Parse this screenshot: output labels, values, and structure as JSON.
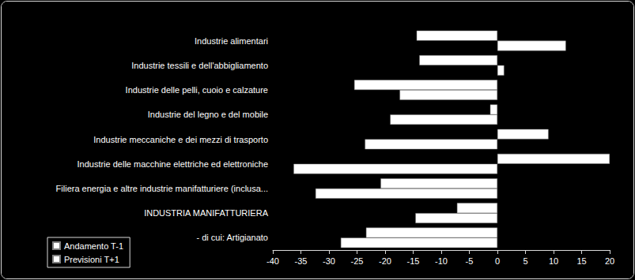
{
  "chart_data": {
    "type": "bar",
    "orientation": "horizontal",
    "categories": [
      "Industrie alimentari",
      "Industrie tessili e dell'abbigliamento",
      "Industrie delle pelli, cuoio e calzature",
      "Industrie del legno e del mobile",
      "Industrie meccaniche e dei mezzi di trasporto",
      "Industrie delle macchine elettriche ed elettroniche",
      "Filiera energia e altre industrie manifatturiere (inclusa...",
      "INDUSTRIA MANIFATTURIERA",
      "- di cui: Artigianato"
    ],
    "series": [
      {
        "name": "Andamento T-1",
        "color": "#ffffff",
        "values": [
          -14.4,
          -13.9,
          -25.5,
          -1.3,
          9.1,
          20,
          -20.8,
          -7.2,
          -23.4
        ]
      },
      {
        "name": "Previsioni T+1",
        "color": "#ffffff",
        "values": [
          12.2,
          1.2,
          -17.4,
          -19.1,
          -23.6,
          -36.3,
          -32.4,
          -14.6,
          -27.9
        ]
      }
    ],
    "xlim": [
      -40,
      20
    ],
    "xticks": [
      -40,
      -35,
      -30,
      -25,
      -20,
      -15,
      -10,
      -5,
      0,
      5,
      10,
      15,
      20
    ],
    "legend": "bottom-left",
    "grid": false
  }
}
